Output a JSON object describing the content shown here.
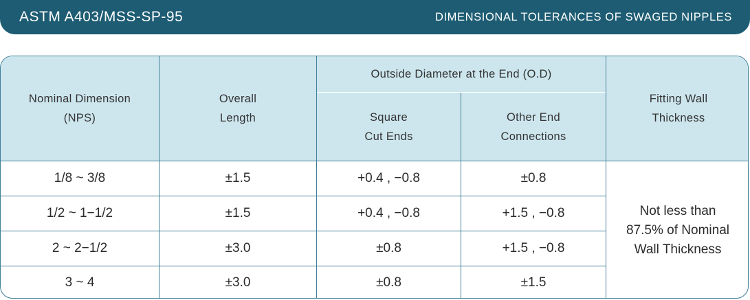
{
  "banner": {
    "left_title": "ASTM A403/MSS-SP-95",
    "right_title": "DIMENSIONAL TOLERANCES OF SWAGED NIPPLES"
  },
  "table": {
    "headers": {
      "nominal": "Nominal Dimension\n(NPS)",
      "overall": "Overall\nLength",
      "od_group": "Outside Diameter at the End (O.D)",
      "square": "Square\nCut Ends",
      "other": "Other End\nConnections",
      "wall": "Fitting Wall\nThickness"
    },
    "rows": [
      {
        "nominal": "1/8 ~ 3/8",
        "overall": "±1.5",
        "square": "+0.4 , −0.8",
        "other": "±0.8"
      },
      {
        "nominal": "1/2 ~ 1−1/2",
        "overall": "±1.5",
        "square": "+0.4 , −0.8",
        "other": "+1.5 , −0.8"
      },
      {
        "nominal": "2 ~ 2−1/2",
        "overall": "±3.0",
        "square": "±0.8",
        "other": "+1.5 , −0.8"
      },
      {
        "nominal": "3 ~ 4",
        "overall": "±3.0",
        "square": "±0.8",
        "other": "±1.5"
      }
    ],
    "wall_value": "Not less than\n87.5% of Nominal\nWall Thickness"
  }
}
